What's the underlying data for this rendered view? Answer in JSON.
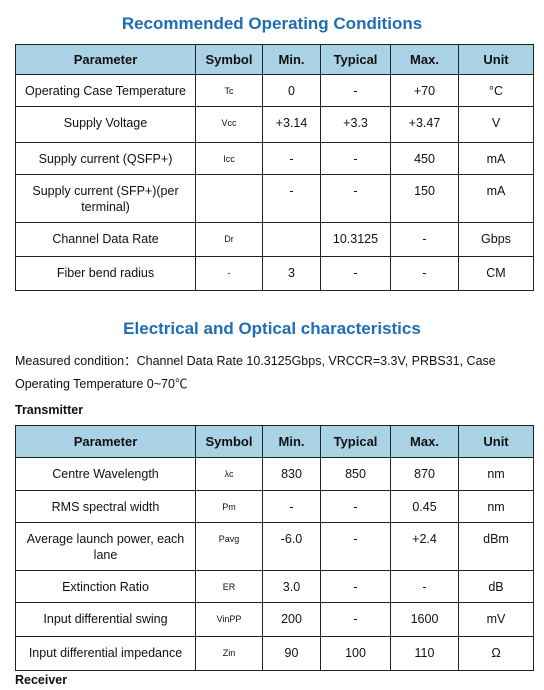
{
  "section1": {
    "title": "Recommended Operating Conditions",
    "table": {
      "header": [
        "Parameter",
        "Symbol",
        "Min.",
        "Typical",
        "Max.",
        "Unit"
      ],
      "rows": [
        [
          "Operating Case Temperature",
          "Tc",
          "0",
          "-",
          "+70",
          "°C"
        ],
        [
          "Supply Voltage",
          "Vcc",
          "+3.14",
          "+3.3",
          "+3.47",
          "V"
        ],
        [
          "Supply current (QSFP+)",
          "Icc",
          "-",
          "-",
          "450",
          "mA"
        ],
        [
          "Supply current (SFP+)(per terminal)",
          null,
          "-",
          "-",
          "150",
          "mA"
        ],
        [
          "Channel Data Rate",
          "Dr",
          null,
          "10.3125",
          "-",
          "Gbps"
        ],
        [
          "Fiber bend radius",
          "-",
          "3",
          "-",
          "-",
          "CM"
        ]
      ]
    }
  },
  "section2": {
    "title": "Electrical and Optical characteristics",
    "condition": "Measured condition：Channel Data Rate 10.3125Gbps, VRCCR=3.3V, PRBS31, Case Operating Temperature 0~70℃",
    "transmitter": "Transmitter",
    "table": {
      "header": [
        "Parameter",
        "Symbol",
        "Min.",
        "Typical",
        "Max.",
        "Unit"
      ],
      "rows": [
        [
          "Centre Wavelength",
          "λc",
          "830",
          "850",
          "870",
          "nm"
        ],
        [
          "RMS spectral width",
          "Pm",
          "-",
          "-",
          "0.45",
          "nm"
        ],
        [
          "Average launch power, each lane",
          "Pavg",
          "-6.0",
          "-",
          "+2.4",
          "dBm"
        ],
        [
          "Extinction Ratio",
          "ER",
          "3.0",
          "-",
          "-",
          "dB"
        ],
        [
          "Input differential swing",
          "VinPP",
          "200",
          "-",
          "1600",
          "mV"
        ],
        [
          "Input differential impedance",
          "Zin",
          "90",
          "100",
          "110",
          "Ω"
        ]
      ]
    },
    "receiver": "Receiver"
  }
}
